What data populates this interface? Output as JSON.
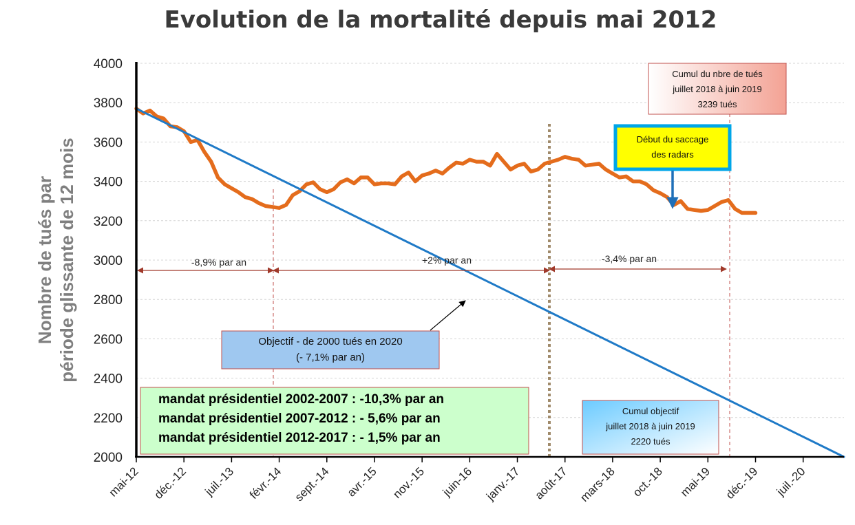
{
  "chart_data": {
    "type": "line",
    "title": "Evolution de la mortalité depuis mai 2012",
    "ylabel_line1": "Nombre de tués par",
    "ylabel_line2": "période  glissante de 12 mois",
    "ylim": [
      2000,
      4000
    ],
    "yticks": [
      2000,
      2200,
      2400,
      2600,
      2800,
      3000,
      3200,
      3400,
      3600,
      3800,
      4000
    ],
    "xticks": [
      "mai-12",
      "déc.-12",
      "juil.-13",
      "févr.-14",
      "sept.-14",
      "avr.-15",
      "nov.-15",
      "juin-16",
      "janv.-17",
      "août-17",
      "mars-18",
      "oct.-18",
      "mai-19",
      "déc.-19",
      "juil.-20"
    ],
    "x_months_range": [
      0,
      104
    ],
    "grid": true,
    "series": [
      {
        "color": "#e46c1c",
        "points": [
          [
            0,
            3770
          ],
          [
            1,
            3745
          ],
          [
            2,
            3760
          ],
          [
            3,
            3730
          ],
          [
            4,
            3720
          ],
          [
            5,
            3680
          ],
          [
            6,
            3675
          ],
          [
            7,
            3655
          ],
          [
            8,
            3600
          ],
          [
            9,
            3610
          ],
          [
            10,
            3550
          ],
          [
            11,
            3500
          ],
          [
            12,
            3420
          ],
          [
            13,
            3385
          ],
          [
            14,
            3365
          ],
          [
            15,
            3345
          ],
          [
            16,
            3320
          ],
          [
            17,
            3310
          ],
          [
            18,
            3290
          ],
          [
            19,
            3275
          ],
          [
            20,
            3270
          ],
          [
            21,
            3265
          ],
          [
            22,
            3280
          ],
          [
            23,
            3330
          ],
          [
            24,
            3350
          ],
          [
            25,
            3385
          ],
          [
            26,
            3395
          ],
          [
            27,
            3360
          ],
          [
            28,
            3345
          ],
          [
            29,
            3360
          ],
          [
            30,
            3395
          ],
          [
            31,
            3410
          ],
          [
            32,
            3390
          ],
          [
            33,
            3420
          ],
          [
            34,
            3420
          ],
          [
            35,
            3385
          ],
          [
            36,
            3390
          ],
          [
            37,
            3390
          ],
          [
            38,
            3385
          ],
          [
            39,
            3425
          ],
          [
            40,
            3445
          ],
          [
            41,
            3400
          ],
          [
            42,
            3430
          ],
          [
            43,
            3440
          ],
          [
            44,
            3455
          ],
          [
            45,
            3440
          ],
          [
            46,
            3470
          ],
          [
            47,
            3495
          ],
          [
            48,
            3490
          ],
          [
            49,
            3510
          ],
          [
            50,
            3500
          ],
          [
            51,
            3500
          ],
          [
            52,
            3480
          ],
          [
            53,
            3540
          ],
          [
            54,
            3500
          ],
          [
            55,
            3460
          ],
          [
            56,
            3480
          ],
          [
            57,
            3490
          ],
          [
            58,
            3450
          ],
          [
            59,
            3460
          ],
          [
            60,
            3490
          ],
          [
            61,
            3500
          ],
          [
            62,
            3510
          ],
          [
            63,
            3525
          ],
          [
            64,
            3515
          ],
          [
            65,
            3510
          ],
          [
            66,
            3480
          ],
          [
            67,
            3485
          ],
          [
            68,
            3490
          ],
          [
            69,
            3460
          ],
          [
            70,
            3440
          ],
          [
            71,
            3420
          ],
          [
            72,
            3425
          ],
          [
            73,
            3400
          ],
          [
            74,
            3400
          ],
          [
            75,
            3385
          ],
          [
            76,
            3355
          ],
          [
            77,
            3340
          ],
          [
            78,
            3320
          ],
          [
            79,
            3280
          ],
          [
            80,
            3300
          ],
          [
            81,
            3260
          ],
          [
            82,
            3255
          ],
          [
            83,
            3250
          ],
          [
            84,
            3255
          ],
          [
            85,
            3275
          ],
          [
            86,
            3295
          ],
          [
            87,
            3305
          ],
          [
            88,
            3260
          ],
          [
            89,
            3240
          ],
          [
            90,
            3240
          ],
          [
            91,
            3240
          ]
        ]
      },
      {
        "color": "#1f7ac7",
        "points": [
          [
            0,
            3770
          ],
          [
            104,
            2000
          ]
        ]
      }
    ]
  },
  "annotations": {
    "period1": "-8,9% par an",
    "period2": "+2% par an",
    "period3": "-3,4% par an",
    "objectif_line1": "Objectif - de 2000 tués en 2020",
    "objectif_line2": "(- 7,1% par an)",
    "radars_line1": "Début du saccage",
    "radars_line2": "des radars",
    "cumul_line1": "Cumul du nbre de tués",
    "cumul_line2": "juillet 2018 à juin 2019",
    "cumul_line3": "3239 tués",
    "cumul_obj_line1": "Cumul objectif",
    "cumul_obj_line2": "juillet 2018 à juin 2019",
    "cumul_obj_line3": "2220 tués",
    "mandat1": "mandat présidentiel 2002-2007 : -10,3% par an",
    "mandat2": "mandat présidentiel 2007-2012 : - 5,6% par an",
    "mandat3": "mandat présidentiel 2012-2017 : - 1,5% par an"
  },
  "colors": {
    "orange": "#e46c1c",
    "blue": "#1f7ac7",
    "arrow_red": "#a0392a",
    "dotted_brown": "#a08a6a",
    "mandat_bg": "#ccffcc",
    "objectif_bg": "#9fc8f0",
    "radars_bg": "#ffff00",
    "radars_border": "#00a6e8"
  }
}
